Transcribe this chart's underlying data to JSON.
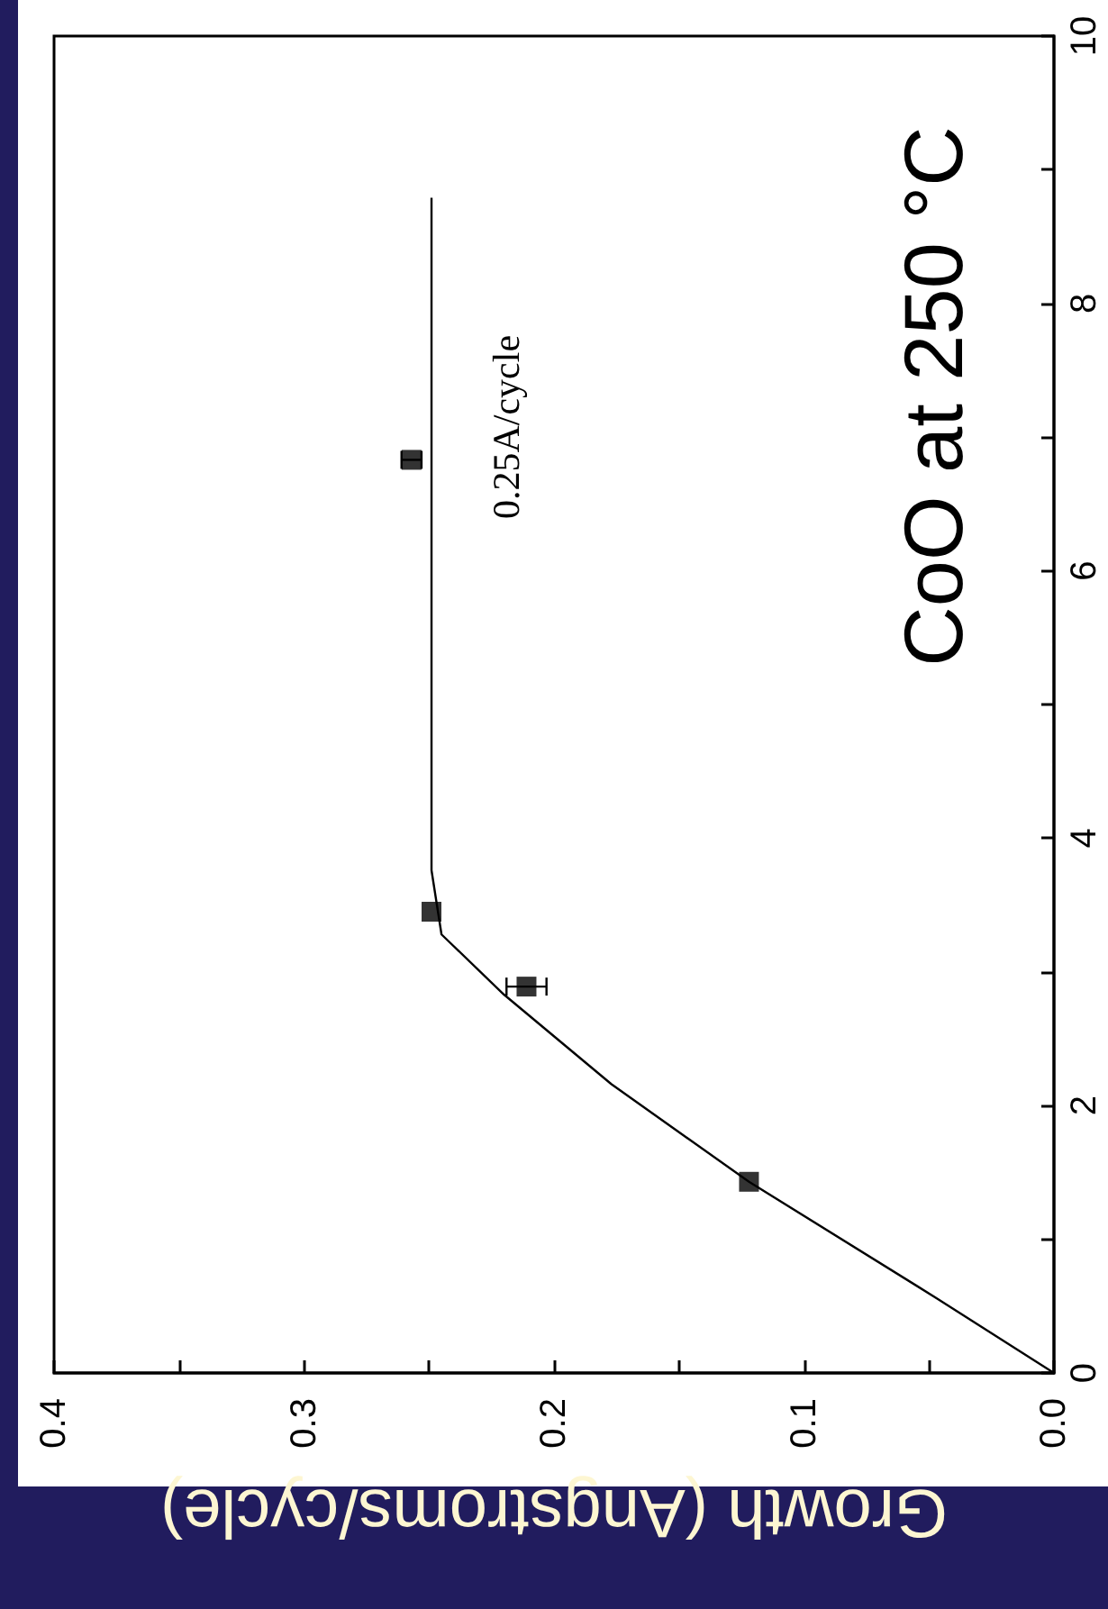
{
  "chart_data": {
    "type": "scatter",
    "title": "CoO at 250 °C",
    "xlabel": "Growth (Angstroms/cycle)",
    "ylim": [
      0,
      10
    ],
    "yticks": [
      0,
      {
        "value": 1,
        "label": null
      },
      2,
      {
        "value": 3,
        "label": null
      },
      4,
      {
        "value": 5,
        "label": null
      },
      6,
      {
        "value": 7,
        "label": null
      },
      8,
      {
        "value": 9,
        "label": null
      },
      10
    ],
    "xlim": [
      0.4,
      0
    ],
    "xticks": [
      {
        "value": 0,
        "label": "0.0"
      },
      {
        "value": 0.05,
        "label": null
      },
      0.1,
      {
        "value": 0.15,
        "label": null
      },
      0.2,
      {
        "value": 0.25,
        "label": null
      },
      0.3,
      {
        "value": 0.35,
        "label": null
      },
      0.4
    ],
    "grid": false,
    "legend": false,
    "marker": "square",
    "annotations": [
      "0.25A/cycle"
    ],
    "series": [
      {
        "color": "#000000",
        "x": [
          0.122,
          0.211,
          0.249,
          0.257
        ],
        "values": [
          1.43,
          2.89,
          3.45,
          6.83
        ],
        "xerrors": [
          null,
          0.008,
          null,
          0.004
        ]
      },
      {
        "type": "line",
        "color": "#000000",
        "marker": "none",
        "line_style": "solid",
        "x": [
          0,
          0.047,
          0.122,
          0.177,
          0.22,
          0.245,
          0.249,
          0.249,
          0.249
        ],
        "values": [
          0,
          0.56,
          1.43,
          2.16,
          2.83,
          3.28,
          3.76,
          4.0,
          8.79
        ]
      }
    ]
  }
}
